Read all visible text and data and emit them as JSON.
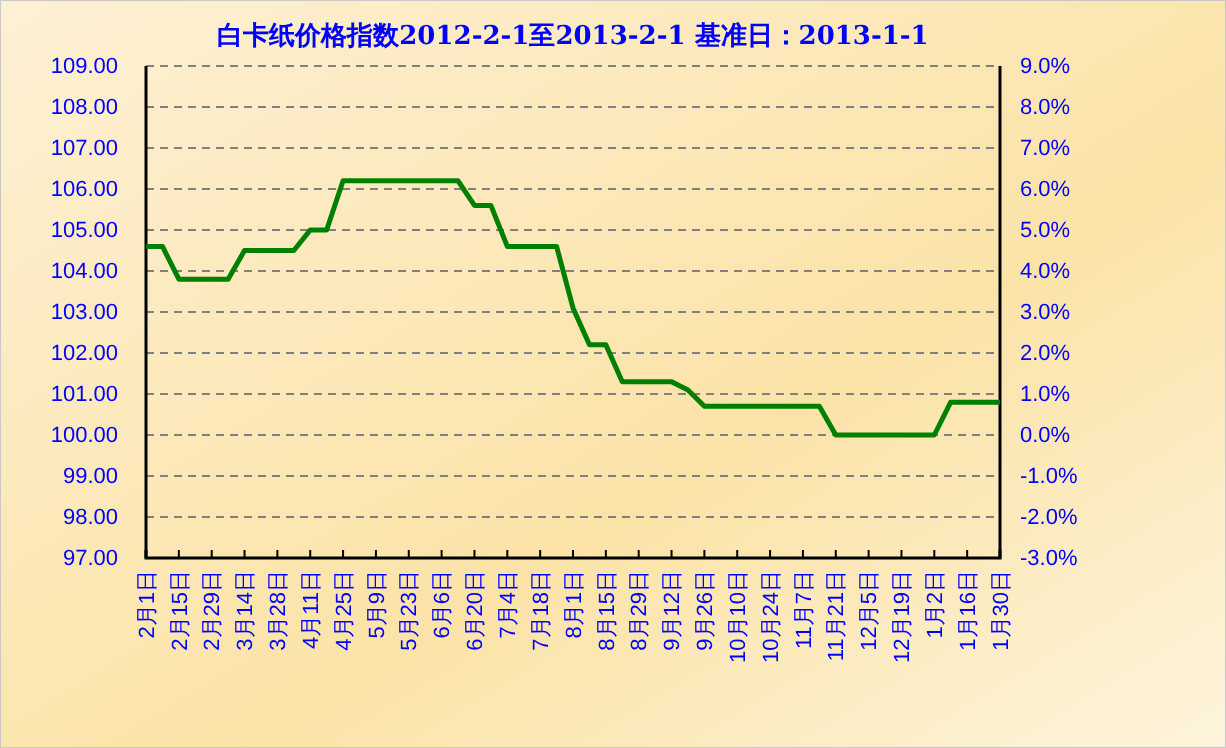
{
  "chart_data": {
    "type": "line",
    "title": "白卡纸价格指数2012-2-1至2013-2-1 基准日：2013-1-1",
    "categories": [
      "2月1日",
      null,
      "2月15日",
      null,
      "2月29日",
      null,
      "3月14日",
      null,
      "3月28日",
      null,
      "4月11日",
      null,
      "4月25日",
      null,
      "5月9日",
      null,
      "5月23日",
      null,
      "6月6日",
      null,
      "6月20日",
      null,
      "7月4日",
      null,
      "7月18日",
      null,
      "8月1日",
      null,
      "8月15日",
      null,
      "8月29日",
      null,
      "9月12日",
      null,
      "9月26日",
      null,
      "10月10日",
      null,
      "10月24日",
      null,
      "11月7日",
      null,
      "11月21日",
      null,
      "12月5日",
      null,
      "12月19日",
      null,
      "1月2日",
      null,
      "1月16日",
      null,
      "1月30日"
    ],
    "series": [
      {
        "color": "#008000",
        "values": [
          104.6,
          104.6,
          103.8,
          103.8,
          103.8,
          103.8,
          104.5,
          104.5,
          104.5,
          104.5,
          105.0,
          105.0,
          106.2,
          106.2,
          106.2,
          106.2,
          106.2,
          106.2,
          106.2,
          106.2,
          105.6,
          105.6,
          104.6,
          104.6,
          104.6,
          104.6,
          103.1,
          102.2,
          102.2,
          101.3,
          101.3,
          101.3,
          101.3,
          101.1,
          100.7,
          100.7,
          100.7,
          100.7,
          100.7,
          100.7,
          100.7,
          100.7,
          100.0,
          100.0,
          100.0,
          100.0,
          100.0,
          100.0,
          100.0,
          100.8,
          100.8,
          100.8,
          100.8
        ]
      }
    ],
    "ylim": [
      97,
      109
    ],
    "yticks": [
      {
        "value": 97,
        "label": "97.00"
      },
      {
        "value": 98,
        "label": "98.00"
      },
      {
        "value": 99,
        "label": "99.00"
      },
      {
        "value": 100,
        "label": "100.00"
      },
      {
        "value": 101,
        "label": "101.00"
      },
      {
        "value": 102,
        "label": "102.00"
      },
      {
        "value": 103,
        "label": "103.00"
      },
      {
        "value": 104,
        "label": "104.00"
      },
      {
        "value": 105,
        "label": "105.00"
      },
      {
        "value": 106,
        "label": "106.00"
      },
      {
        "value": 107,
        "label": "107.00"
      },
      {
        "value": 108,
        "label": "108.00"
      },
      {
        "value": 109,
        "label": "109.00"
      }
    ],
    "y2lim": [
      -3,
      9
    ],
    "y2ticks": [
      {
        "value": -3,
        "label": "-3.0%"
      },
      {
        "value": -2,
        "label": "-2.0%"
      },
      {
        "value": -1,
        "label": "-1.0%"
      },
      {
        "value": 0,
        "label": "0.0%"
      },
      {
        "value": 1,
        "label": "1.0%"
      },
      {
        "value": 2,
        "label": "2.0%"
      },
      {
        "value": 3,
        "label": "3.0%"
      },
      {
        "value": 4,
        "label": "4.0%"
      },
      {
        "value": 5,
        "label": "5.0%"
      },
      {
        "value": 6,
        "label": "6.0%"
      },
      {
        "value": 7,
        "label": "7.0%"
      },
      {
        "value": 8,
        "label": "8.0%"
      },
      {
        "value": 9,
        "label": "9.0%"
      }
    ],
    "grid": "y",
    "marker": "none",
    "line_style": "solid"
  }
}
